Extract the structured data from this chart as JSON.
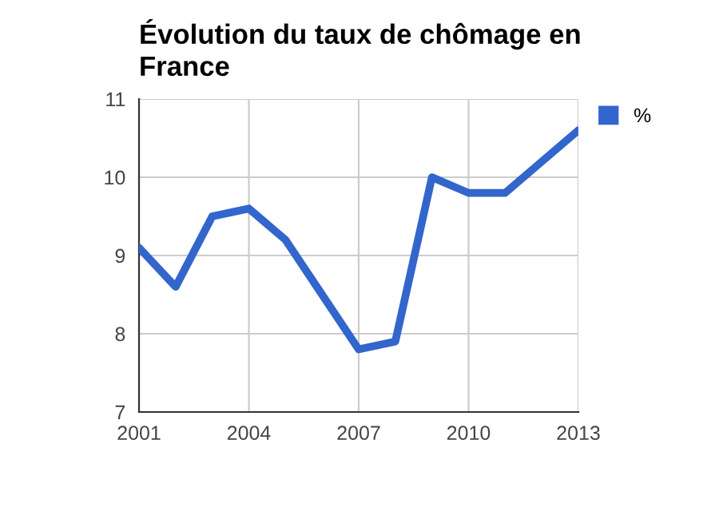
{
  "chart_data": {
    "type": "line",
    "title": "Évolution du taux de chômage en\nFrance",
    "x": [
      2001,
      2002,
      2003,
      2004,
      2005,
      2006,
      2007,
      2008,
      2009,
      2010,
      2011,
      2012,
      2013
    ],
    "series": [
      {
        "name": "%",
        "color": "#3366cc",
        "values": [
          9.1,
          8.6,
          9.5,
          9.6,
          9.2,
          8.5,
          7.8,
          7.9,
          10.0,
          9.8,
          9.8,
          10.2,
          10.6
        ]
      }
    ],
    "xlim": [
      2001,
      2013
    ],
    "xticks": [
      2001,
      2004,
      2007,
      2010,
      2013
    ],
    "ylim": [
      7,
      11
    ],
    "yticks": [
      7,
      8,
      9,
      10,
      11
    ],
    "grid": true,
    "legend": "top right",
    "marker": "none",
    "line_style": "solid"
  }
}
